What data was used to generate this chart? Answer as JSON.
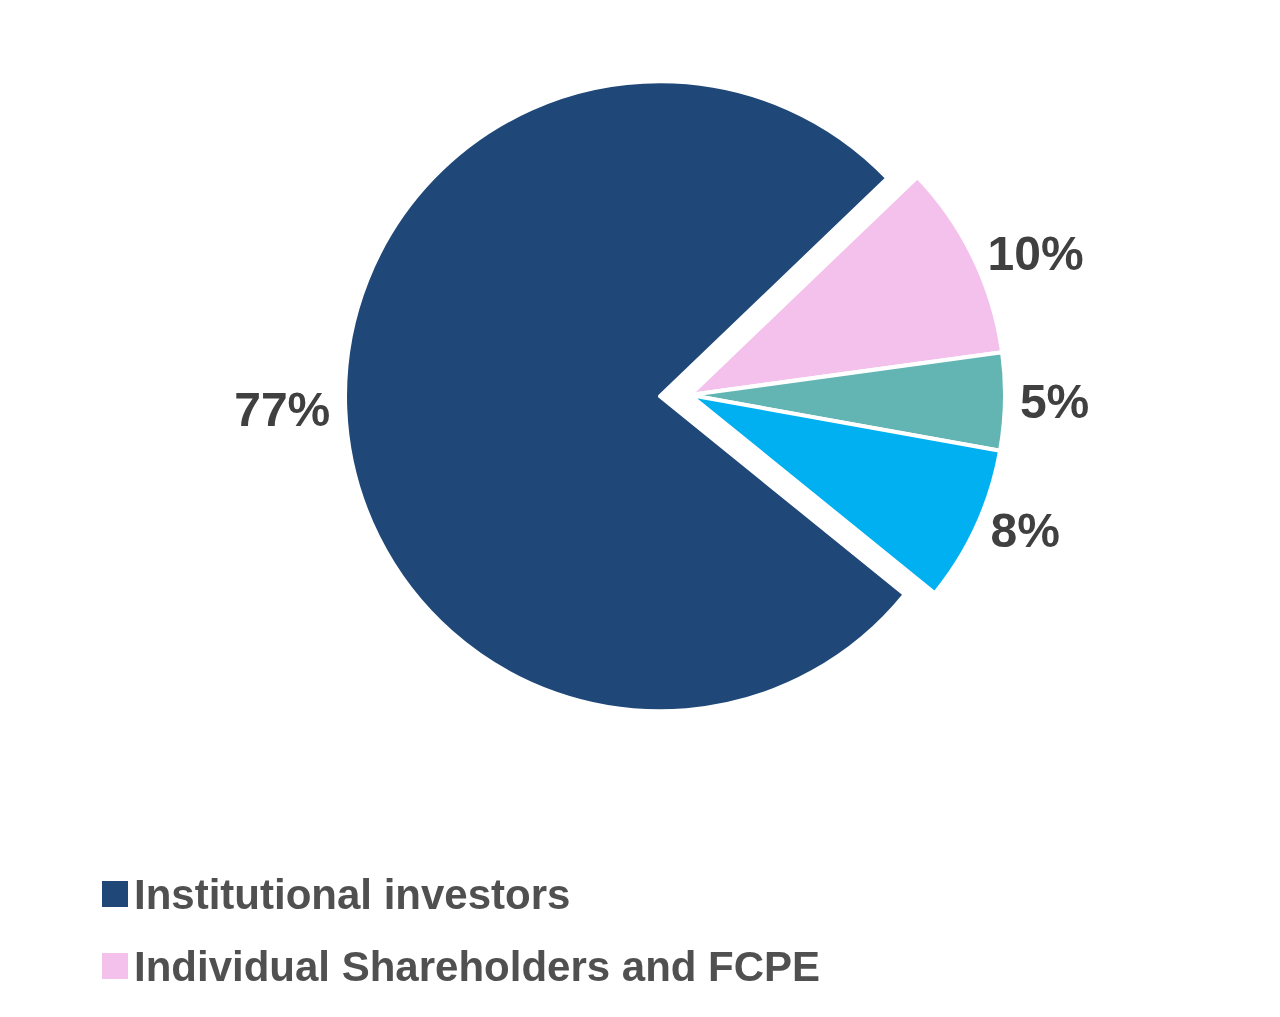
{
  "chart_data": {
    "type": "pie",
    "categories": [
      "Institutional investors",
      "Individual Shareholders and FCPE",
      null,
      null
    ],
    "values": [
      77,
      10,
      5,
      8
    ],
    "colors": [
      "#1f4878",
      "#f4c1ec",
      "#62b5b3",
      "#00b0f0"
    ],
    "value_labels": [
      "77%",
      "10%",
      "5%",
      "8%"
    ],
    "legend": "bottom left"
  }
}
